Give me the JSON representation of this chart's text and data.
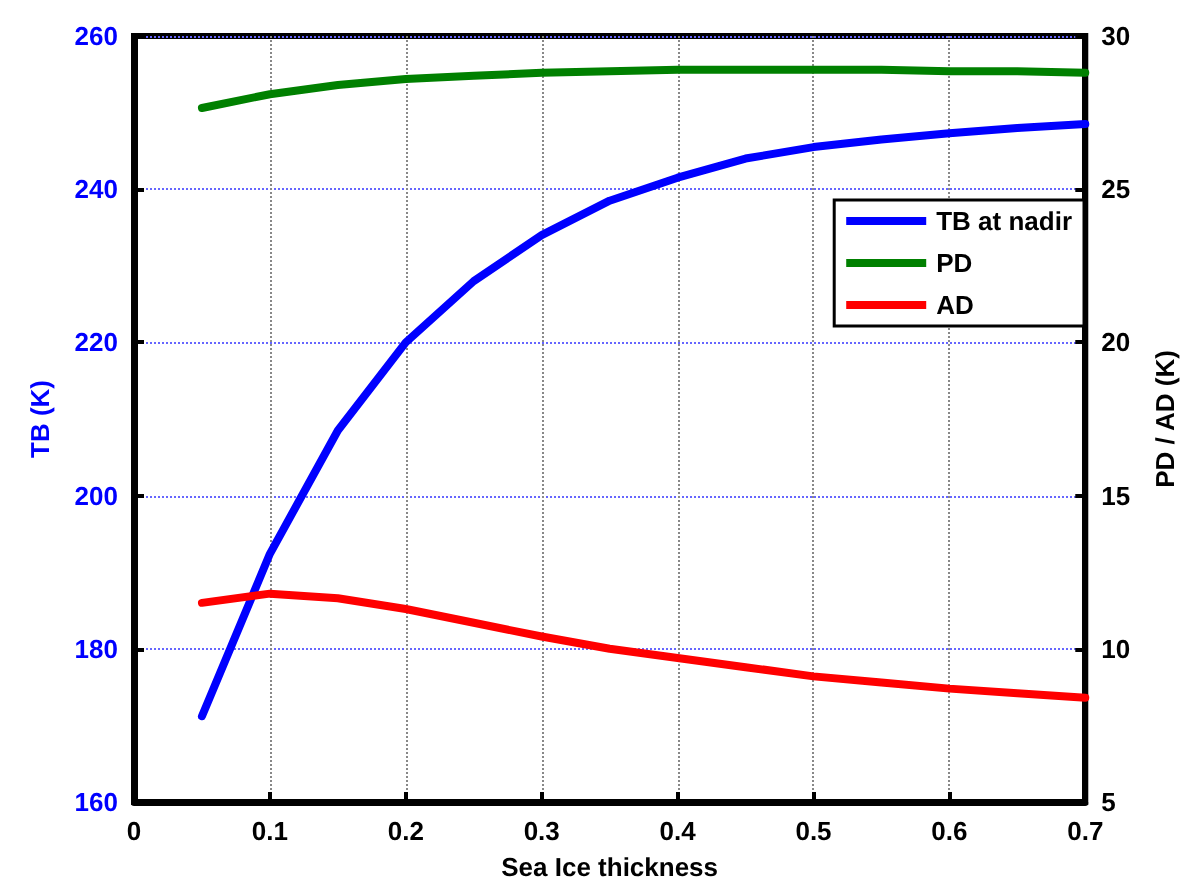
{
  "chart_data": {
    "type": "line",
    "xlabel": "Sea Ice thickness",
    "ylabel": "TB (K)",
    "y2label": "PD / AD (K)",
    "x": [
      0.05,
      0.1,
      0.15,
      0.2,
      0.25,
      0.3,
      0.35,
      0.4,
      0.45,
      0.5,
      0.55,
      0.6,
      0.65,
      0.7
    ],
    "series": [
      {
        "name": "TB at nadir",
        "color": "#0000ff",
        "values": [
          171.2,
          192.4,
          208.5,
          220,
          228,
          234,
          238.5,
          241.5,
          244,
          245.5,
          246.5,
          247.3,
          248,
          248.5
        ]
      },
      {
        "name": "PD",
        "color": "#008000",
        "axis": "y2",
        "values": [
          27.65,
          28.1,
          28.4,
          28.6,
          28.7,
          28.8,
          28.85,
          28.9,
          28.9,
          28.9,
          28.9,
          28.85,
          28.85,
          28.8
        ]
      },
      {
        "name": "AD",
        "color": "#ff0000",
        "axis": "y2",
        "values": [
          11.5,
          11.8,
          11.65,
          11.3,
          10.85,
          10.4,
          10,
          9.7,
          9.4,
          9.1,
          8.9,
          8.7,
          8.55,
          8.4
        ]
      }
    ],
    "xlim": [
      0,
      0.7
    ],
    "xticks": [
      0,
      0.1,
      0.2,
      0.3,
      0.4,
      0.5,
      0.6,
      0.7
    ],
    "ylim": [
      160,
      260
    ],
    "yticks": [
      160,
      180,
      200,
      220,
      240,
      260
    ],
    "y2lim": [
      5,
      30
    ],
    "y2ticks": [
      5,
      10,
      15,
      20,
      25,
      30
    ],
    "grid": true,
    "legend": "right",
    "marker": "none",
    "line_style": "solid"
  }
}
